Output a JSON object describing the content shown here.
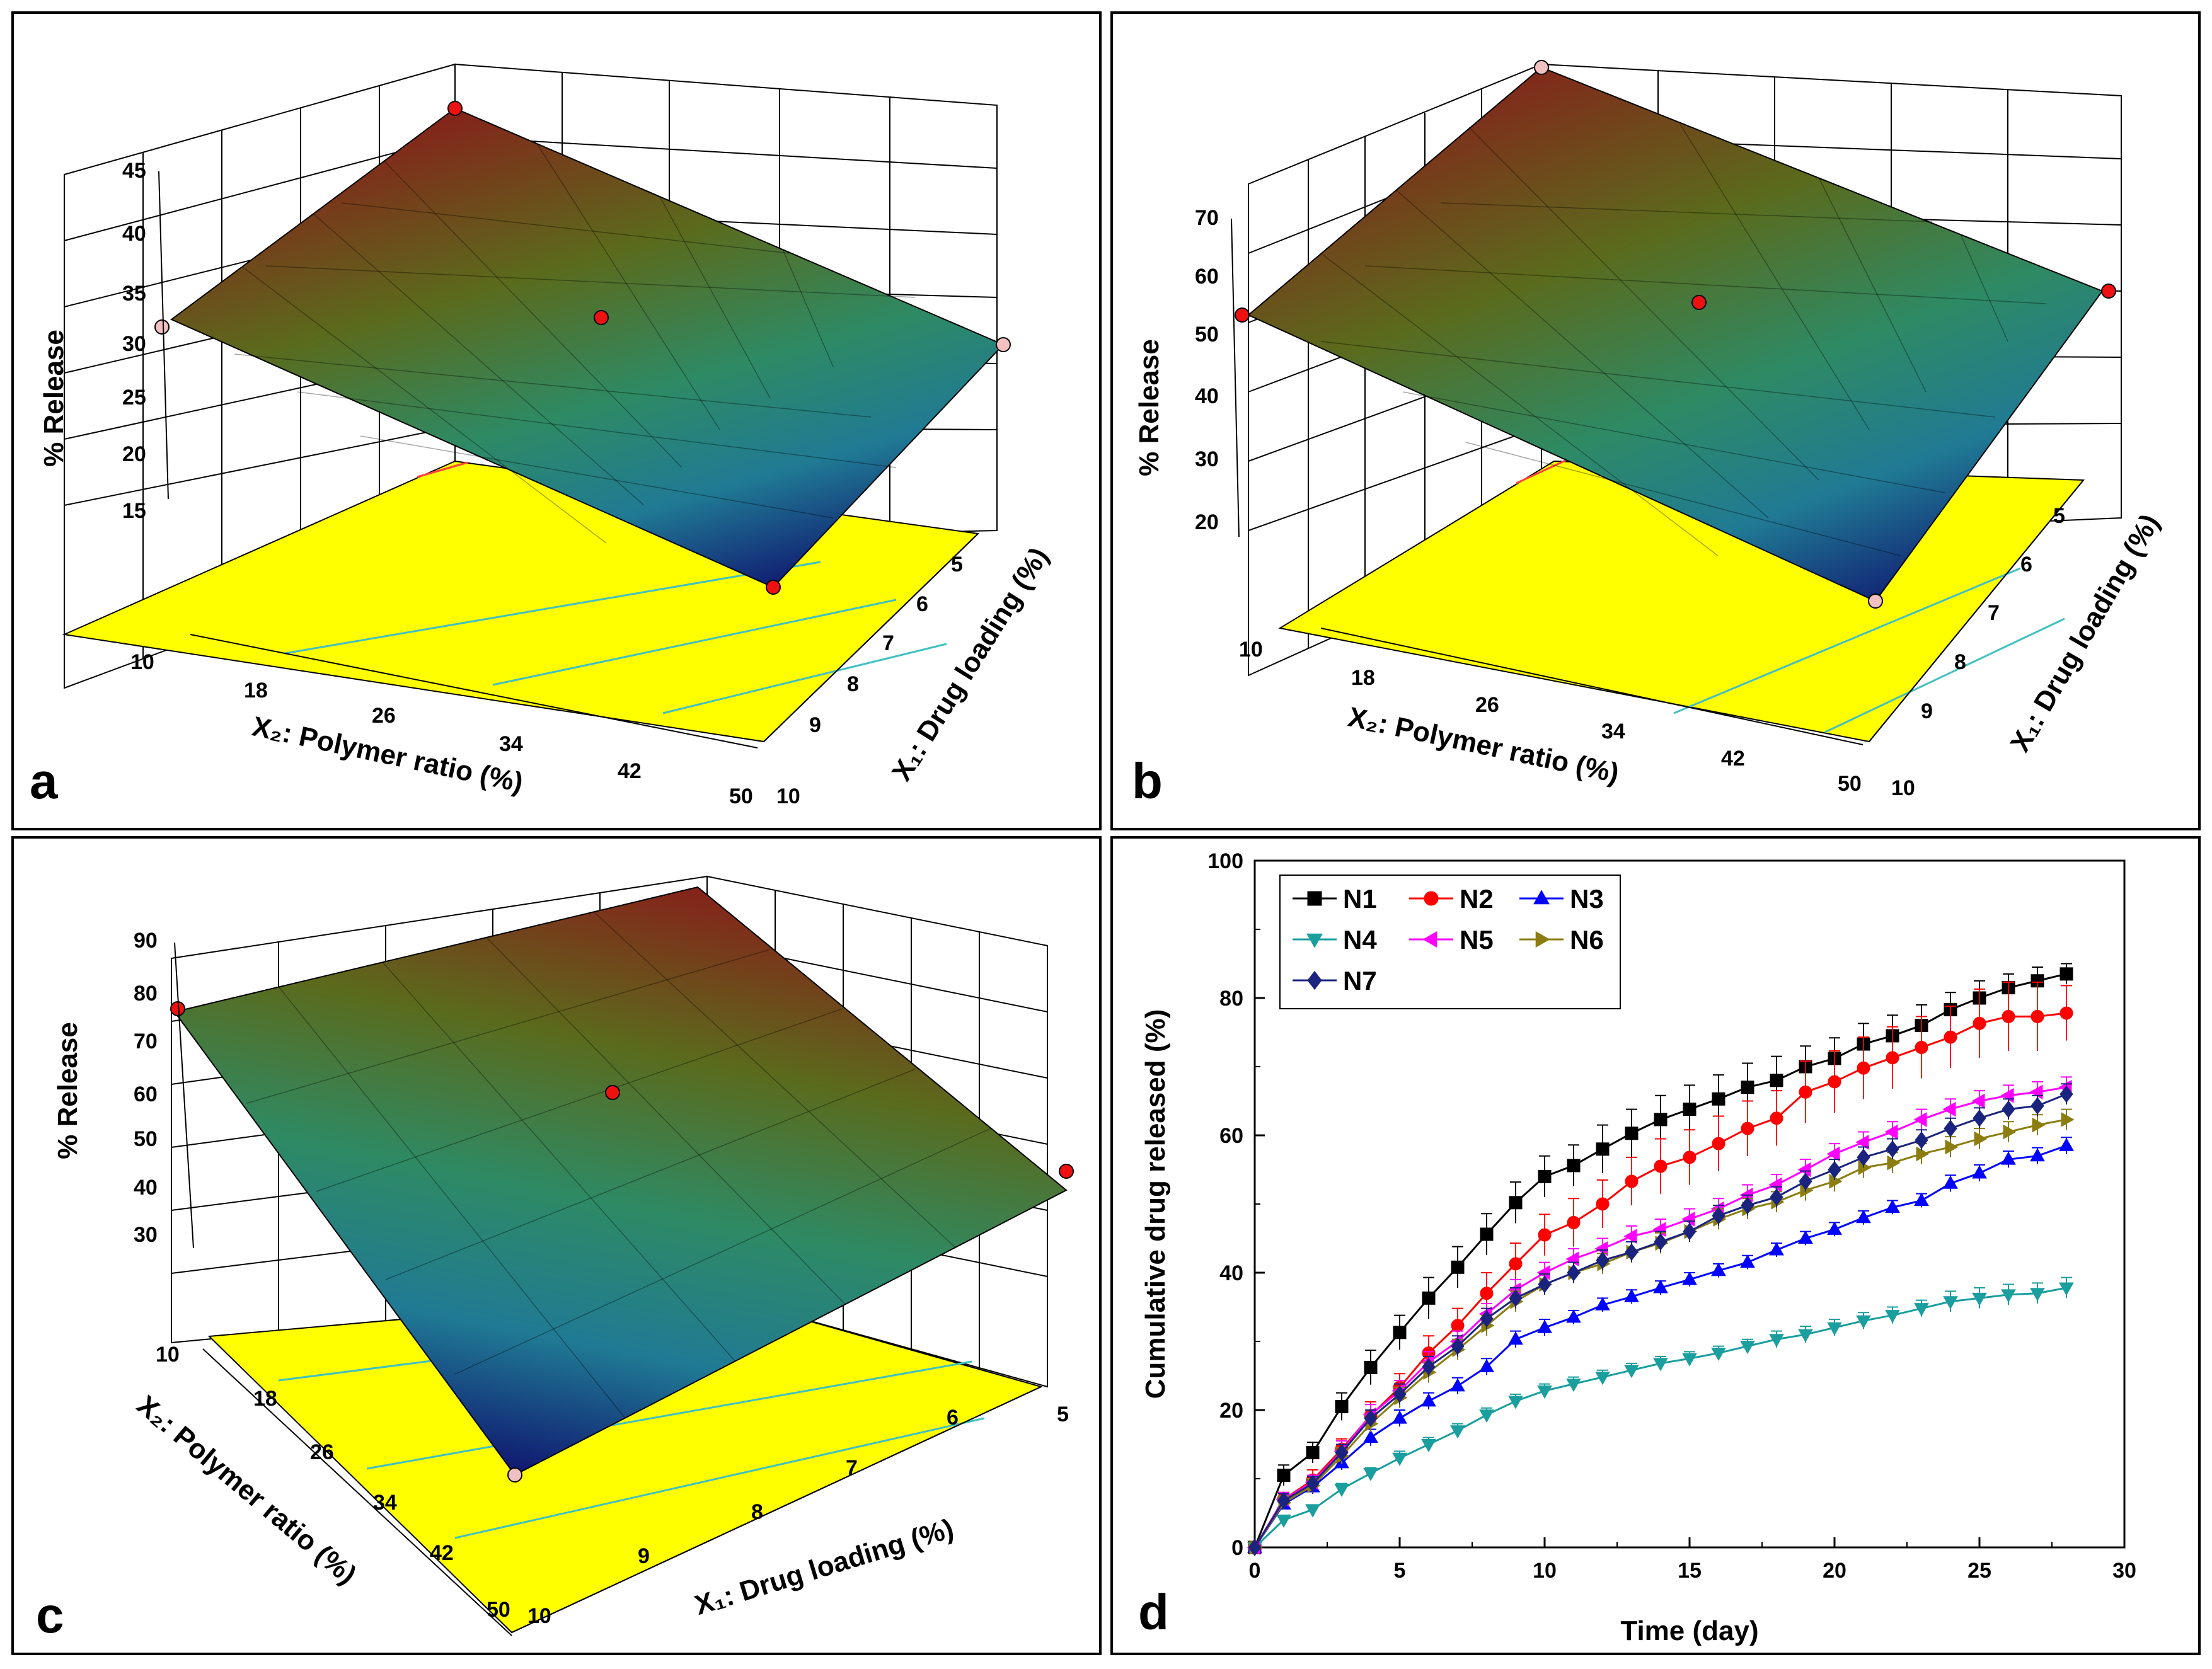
{
  "panels": {
    "a": {
      "label": "a",
      "zlabel": "% Release",
      "z_ticks": [
        "45",
        "40",
        "35",
        "30",
        "25",
        "20",
        "15"
      ],
      "x2_label": "X₂: Polymer ratio (%)",
      "x2_ticks": [
        "10",
        "18",
        "26",
        "34",
        "42",
        "50"
      ],
      "x1_label": "X₁: Drug loading (%)",
      "x1_ticks": [
        "10",
        "9",
        "8",
        "7",
        "6",
        "5"
      ]
    },
    "b": {
      "label": "b",
      "zlabel": "% Release",
      "z_ticks": [
        "70",
        "60",
        "50",
        "40",
        "30",
        "20"
      ],
      "x2_label": "X₂: Polymer ratio (%)",
      "x2_ticks": [
        "10",
        "18",
        "26",
        "34",
        "42",
        "50"
      ],
      "x1_label": "X₁: Drug loading (%)",
      "x1_ticks": [
        "10",
        "9",
        "8",
        "7",
        "6",
        "5"
      ]
    },
    "c": {
      "label": "c",
      "zlabel": "% Release",
      "z_ticks": [
        "90",
        "80",
        "70",
        "60",
        "50",
        "40",
        "30"
      ],
      "x2_label": "X₂: Polymer ratio (%)",
      "x2_ticks": [
        "10",
        "18",
        "26",
        "34",
        "42",
        "50"
      ],
      "x1_label": "X₁: Drug loading (%)",
      "x1_ticks": [
        "10",
        "9",
        "8",
        "7",
        "6",
        "5"
      ]
    }
  },
  "chart_data": {
    "type": "line",
    "label": "d",
    "xlabel": "Time (day)",
    "ylabel": "Cumulative drug released (%)",
    "xlim": [
      0,
      30
    ],
    "ylim": [
      0,
      100
    ],
    "xticks": [
      "0",
      "5",
      "10",
      "15",
      "20",
      "25",
      "30"
    ],
    "yticks": [
      "0",
      "20",
      "40",
      "60",
      "80",
      "100"
    ],
    "x": [
      0,
      1,
      2,
      3,
      4,
      5,
      6,
      7,
      8,
      9,
      10,
      11,
      12,
      13,
      14,
      15,
      16,
      17,
      18,
      19,
      20,
      21,
      22,
      23,
      24,
      25,
      26,
      27,
      28
    ],
    "series": [
      {
        "name": "N1",
        "color": "#000000",
        "marker": "square",
        "values": [
          0,
          10.5,
          13.8,
          20.5,
          26.2,
          31.3,
          36.3,
          40.8,
          45.6,
          50.2,
          54.0,
          55.6,
          58.0,
          60.3,
          62.3,
          63.8,
          65.3,
          67.0,
          68.0,
          70.0,
          71.2,
          73.3,
          74.5,
          76.0,
          78.3,
          80.0,
          81.5,
          82.5,
          83.5
        ],
        "err": [
          0,
          1.5,
          1.5,
          2,
          2.5,
          2.5,
          3,
          3,
          3,
          3,
          3,
          3,
          3.5,
          3.5,
          3.5,
          3.5,
          3.5,
          3.5,
          3.5,
          3,
          3,
          3,
          3,
          3,
          2.5,
          2.5,
          2,
          2,
          1.5
        ]
      },
      {
        "name": "N2",
        "color": "#ff0000",
        "marker": "circle",
        "values": [
          0,
          7.0,
          9.8,
          14.3,
          19.2,
          23.3,
          28.3,
          32.3,
          37.0,
          41.3,
          45.5,
          47.3,
          50.0,
          53.3,
          55.5,
          56.8,
          58.8,
          61.0,
          62.5,
          66.3,
          67.8,
          69.8,
          71.3,
          72.8,
          74.3,
          76.3,
          77.3,
          77.3,
          77.8
        ],
        "err": [
          0,
          1,
          1.5,
          1.5,
          2,
          2,
          2.5,
          2.5,
          3,
          3,
          3,
          3.5,
          3.5,
          3.5,
          4,
          4,
          4,
          4,
          4,
          4.5,
          4.5,
          4.5,
          4.5,
          4.5,
          4.5,
          5,
          5,
          5,
          4
        ]
      },
      {
        "name": "N3",
        "color": "#0000ff",
        "marker": "triangle-up",
        "values": [
          0,
          6.3,
          8.8,
          12.3,
          16.0,
          18.8,
          21.3,
          23.5,
          26.3,
          30.3,
          32.0,
          33.5,
          35.3,
          36.5,
          37.8,
          39.0,
          40.3,
          41.5,
          43.3,
          45.0,
          46.3,
          48.0,
          49.5,
          50.5,
          53.0,
          54.5,
          56.5,
          57.0,
          58.5
        ],
        "err": [
          0,
          0.8,
          1,
          1,
          1.2,
          1.2,
          1.2,
          1.2,
          1.2,
          1.2,
          1.2,
          1,
          1,
          1,
          1,
          1,
          1,
          1,
          1,
          1,
          1,
          1,
          1,
          1,
          1.2,
          1.2,
          1.2,
          1.2,
          1.2
        ]
      },
      {
        "name": "N4",
        "color": "#1a9e9e",
        "marker": "triangle-down",
        "values": [
          0,
          4.0,
          5.5,
          8.5,
          10.8,
          13.0,
          15.0,
          17.0,
          19.3,
          21.3,
          22.8,
          23.8,
          24.8,
          25.8,
          26.8,
          27.5,
          28.3,
          29.3,
          30.3,
          31.0,
          32.0,
          33.0,
          33.8,
          34.8,
          35.8,
          36.3,
          36.8,
          37.0,
          37.8
        ],
        "err": [
          0,
          0.6,
          0.7,
          0.8,
          0.8,
          1,
          1,
          1,
          1,
          1,
          1,
          1,
          1,
          1,
          1,
          1,
          1,
          1,
          1.2,
          1.2,
          1.2,
          1.2,
          1.2,
          1.2,
          1.5,
          1.5,
          1.5,
          1.5,
          1.5
        ]
      },
      {
        "name": "N5",
        "color": "#ff00ff",
        "marker": "triangle-left",
        "values": [
          0,
          7.0,
          9.5,
          14.0,
          19.3,
          22.8,
          27.0,
          30.0,
          34.0,
          37.5,
          40.0,
          42.0,
          43.5,
          45.3,
          46.3,
          47.8,
          49.3,
          51.3,
          52.8,
          55.0,
          57.3,
          59.0,
          60.5,
          62.3,
          63.8,
          65.0,
          65.8,
          66.3,
          67.0
        ],
        "err": [
          0,
          1,
          1,
          1.5,
          1.5,
          1.5,
          1.5,
          1.5,
          1.5,
          1.5,
          1.5,
          1.5,
          1.5,
          1.5,
          1.5,
          1.5,
          1.5,
          1.5,
          1.5,
          1.5,
          1.5,
          1.5,
          1.5,
          1.5,
          1.5,
          1.5,
          1.5,
          1.5,
          1.5
        ]
      },
      {
        "name": "N6",
        "color": "#8b7d10",
        "marker": "triangle-right",
        "values": [
          0,
          6.5,
          9.0,
          13.3,
          18.0,
          21.8,
          25.5,
          28.8,
          32.3,
          35.8,
          38.3,
          40.0,
          41.3,
          43.0,
          44.3,
          46.0,
          47.8,
          49.3,
          50.3,
          52.0,
          53.3,
          55.3,
          56.0,
          57.3,
          58.3,
          59.5,
          60.5,
          61.5,
          62.3
        ],
        "err": [
          0,
          1,
          1,
          1.2,
          1.2,
          1.5,
          1.5,
          1.5,
          1.5,
          1.5,
          1.5,
          1.5,
          1.5,
          1.5,
          1.5,
          1.5,
          1.5,
          1.5,
          1.5,
          1.5,
          1.5,
          1.5,
          1.5,
          1.5,
          1.5,
          1.5,
          1.5,
          1.5,
          1.5
        ]
      },
      {
        "name": "N7",
        "color": "#1a237e",
        "marker": "diamond",
        "values": [
          0,
          6.8,
          9.3,
          13.8,
          18.8,
          22.3,
          26.3,
          29.3,
          33.3,
          36.3,
          38.3,
          40.0,
          41.8,
          43.0,
          44.5,
          46.0,
          48.3,
          49.8,
          51.0,
          53.3,
          55.0,
          56.8,
          58.0,
          59.3,
          61.0,
          62.5,
          63.8,
          64.3,
          66.0
        ],
        "err": [
          0,
          1,
          1,
          1.2,
          1.2,
          1.5,
          1.5,
          1.5,
          1.5,
          1.5,
          1.5,
          1.5,
          1.5,
          1.5,
          1.5,
          1.5,
          1.5,
          1.5,
          1.5,
          1.5,
          1.5,
          1.5,
          1.5,
          1.5,
          1.5,
          1.5,
          1.5,
          1.5,
          1.5
        ]
      }
    ]
  }
}
